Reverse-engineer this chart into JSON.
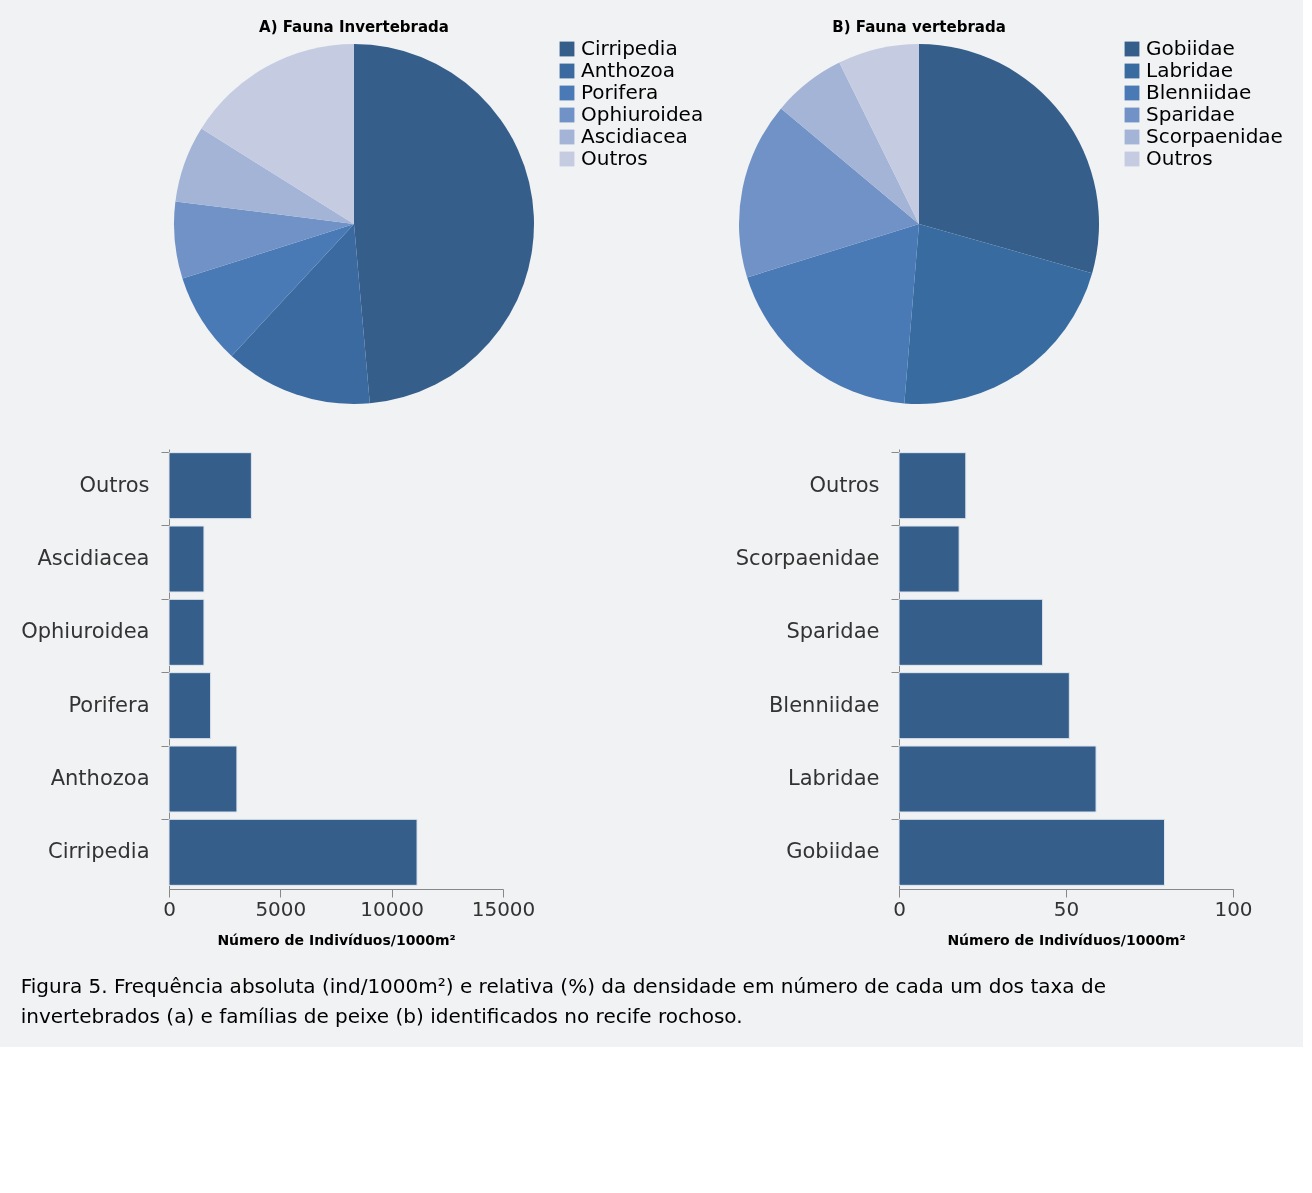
{
  "chart_data": [
    {
      "type": "pie",
      "title": "A) Fauna Invertebrada",
      "categories": [
        "Cirripedia",
        "Anthozoa",
        "Porifera",
        "Ophiuroidea",
        "Ascidiacea",
        "Outros"
      ],
      "values": [
        48.6,
        13.3,
        8.2,
        6.9,
        6.9,
        16.1
      ],
      "colors": [
        "#355e8a",
        "#3a6aa0",
        "#4a7ab5",
        "#7092c6",
        "#a3b4d6",
        "#c5cce2"
      ],
      "legend": "right"
    },
    {
      "type": "pie",
      "title": "B) Fauna vertebrada",
      "categories": [
        "Gobiidae",
        "Labridae",
        "Blenniidae",
        "Sparidae",
        "Scorpaenidae",
        "Outros"
      ],
      "values": [
        29.4,
        21.9,
        18.9,
        15.9,
        6.6,
        7.3
      ],
      "colors": [
        "#355e8a",
        "#386ca1",
        "#4a7ab5",
        "#7092c6",
        "#a3b4d6",
        "#c5cce2"
      ],
      "legend": "right"
    },
    {
      "type": "bar",
      "orientation": "horizontal",
      "categories": [
        "Outros",
        "Ascidiacea",
        "Ophiuroidea",
        "Porifera",
        "Anthozoa",
        "Cirripedia"
      ],
      "values": [
        3700,
        1570,
        1570,
        1870,
        3050,
        11140
      ],
      "color": "#355e8a",
      "xlim": [
        0,
        15000
      ],
      "xticks": [
        0,
        5000,
        10000,
        15000
      ],
      "xlabel": "Número de Indivíduos/1000m²",
      "grid": false
    },
    {
      "type": "bar",
      "orientation": "horizontal",
      "categories": [
        "Outros",
        "Scorpaenidae",
        "Sparidae",
        "Blenniidae",
        "Labridae",
        "Gobiidae"
      ],
      "values": [
        20,
        18,
        43,
        51,
        59,
        79.5
      ],
      "color": "#355e8a",
      "xlim": [
        0,
        100
      ],
      "xticks": [
        0,
        50,
        100
      ],
      "xlabel": "Número de Indivíduos/1000m²",
      "grid": false,
      "annotations": [
        "Figura 5. Frequência absoluta (ind/1000m²) e relativa (%) da densidade em número de cada um dos taxa de invertebrados (a) e famílias de peixe (b) identificados no recife rochoso."
      ]
    }
  ]
}
